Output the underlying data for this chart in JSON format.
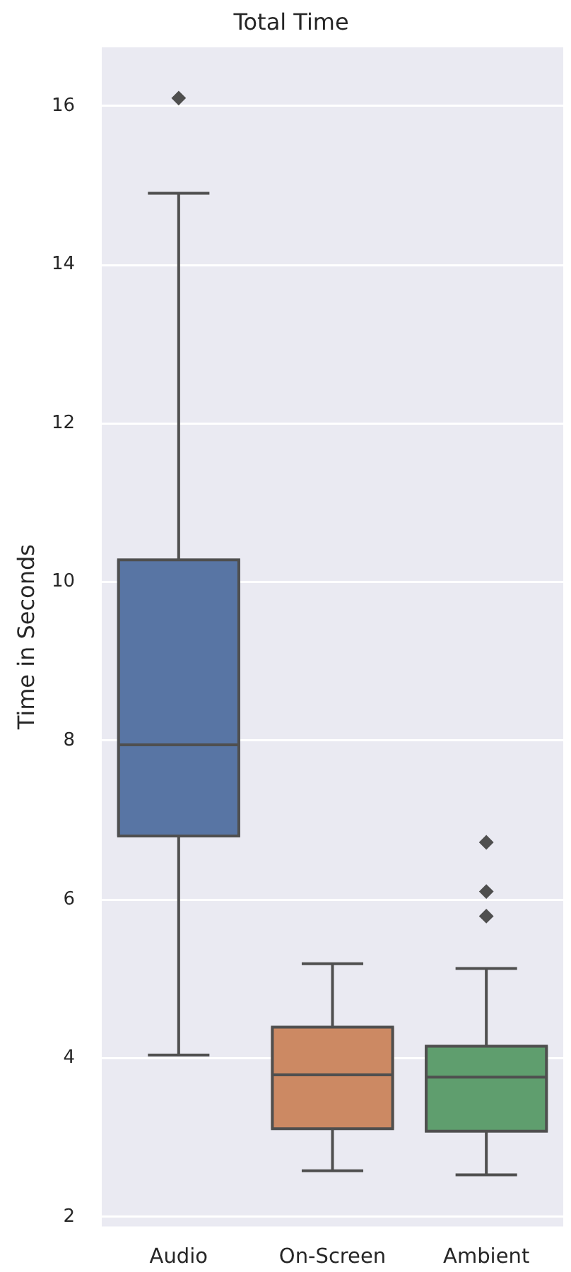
{
  "chart_data": {
    "type": "box",
    "title": "Total Time",
    "ylabel": "Time in Seconds",
    "categories": [
      "Audio",
      "On-Screen",
      "Ambient"
    ],
    "colors": [
      "#5875a4",
      "#cc8963",
      "#5f9e6e"
    ],
    "boxes": [
      {
        "low": 4.04,
        "q1": 6.8,
        "median": 7.95,
        "q3": 10.28,
        "high": 14.9,
        "outliers": [
          16.1
        ]
      },
      {
        "low": 2.58,
        "q1": 3.11,
        "median": 3.79,
        "q3": 4.39,
        "high": 5.19
      },
      {
        "low": 2.53,
        "q1": 3.08,
        "median": 3.76,
        "q3": 4.15,
        "high": 5.13,
        "outliers": [
          5.79,
          6.1,
          6.72
        ]
      }
    ],
    "ylim": [
      1.88,
      16.74
    ],
    "yticks": [
      2,
      4,
      6,
      8,
      10,
      12,
      14,
      16
    ],
    "grid": "y",
    "marker": "diamond"
  }
}
